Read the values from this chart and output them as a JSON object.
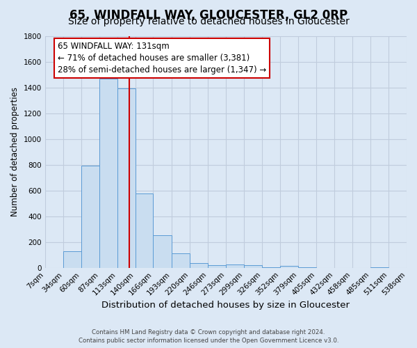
{
  "title": "65, WINDFALL WAY, GLOUCESTER, GL2 0RP",
  "subtitle": "Size of property relative to detached houses in Gloucester",
  "xlabel": "Distribution of detached houses by size in Gloucester",
  "ylabel": "Number of detached properties",
  "bin_edges": [
    7,
    34,
    60,
    87,
    113,
    140,
    166,
    193,
    220,
    246,
    273,
    299,
    326,
    352,
    379,
    405,
    432,
    458,
    485,
    511,
    538
  ],
  "bin_counts": [
    0,
    130,
    795,
    1470,
    1390,
    575,
    250,
    110,
    35,
    20,
    25,
    18,
    5,
    13,
    3,
    0,
    0,
    0,
    3,
    0
  ],
  "bar_facecolor": "#c9ddf0",
  "bar_edgecolor": "#5b9bd5",
  "vline_x": 131,
  "vline_color": "#cc0000",
  "annotation_line1": "65 WINDFALL WAY: 131sqm",
  "annotation_line2": "← 71% of detached houses are smaller (3,381)",
  "annotation_line3": "28% of semi-detached houses are larger (1,347) →",
  "annotation_box_edgecolor": "#cc0000",
  "annotation_fontsize": 8.5,
  "ylim": [
    0,
    1800
  ],
  "yticks": [
    0,
    200,
    400,
    600,
    800,
    1000,
    1200,
    1400,
    1600,
    1800
  ],
  "grid_color": "#c0ccdd",
  "background_color": "#dce8f5",
  "footer_line1": "Contains HM Land Registry data © Crown copyright and database right 2024.",
  "footer_line2": "Contains public sector information licensed under the Open Government Licence v3.0.",
  "title_fontsize": 12,
  "subtitle_fontsize": 10,
  "xlabel_fontsize": 9.5,
  "ylabel_fontsize": 8.5,
  "tick_fontsize": 7.5
}
